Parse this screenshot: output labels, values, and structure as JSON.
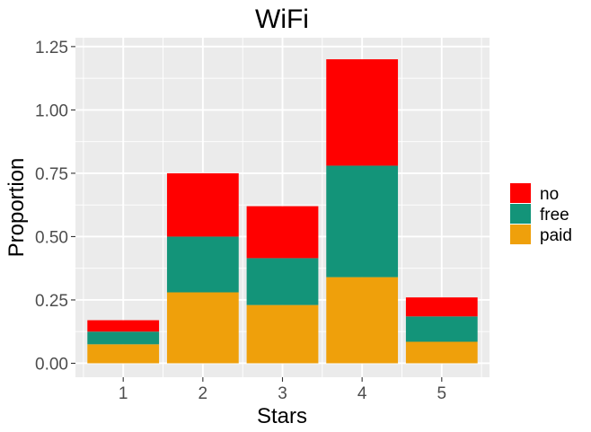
{
  "chart_data": {
    "type": "bar",
    "stacked": true,
    "title": "WiFi",
    "xlabel": "Stars",
    "ylabel": "Proportion",
    "categories": [
      "1",
      "2",
      "3",
      "4",
      "5"
    ],
    "ylim": [
      -0.055,
      1.285
    ],
    "yticks": [
      0.0,
      0.25,
      0.5,
      0.75,
      1.0
    ],
    "ytick_labels": [
      "0.00",
      "0.25",
      "0.50",
      "0.75",
      "1.00",
      "1.25"
    ],
    "yticks_all": [
      0.0,
      0.25,
      0.5,
      0.75,
      1.0,
      1.25
    ],
    "grid": true,
    "legend_position": "right",
    "series": [
      {
        "name": "paid",
        "color": "#EFA00B",
        "values": [
          0.075,
          0.28,
          0.23,
          0.34,
          0.085
        ]
      },
      {
        "name": "free",
        "color": "#139479",
        "values": [
          0.05,
          0.22,
          0.185,
          0.44,
          0.1
        ]
      },
      {
        "name": "no",
        "color": "#FF0000",
        "values": [
          0.045,
          0.25,
          0.205,
          0.42,
          0.075
        ]
      }
    ],
    "legend_order": [
      "no",
      "free",
      "paid"
    ]
  }
}
